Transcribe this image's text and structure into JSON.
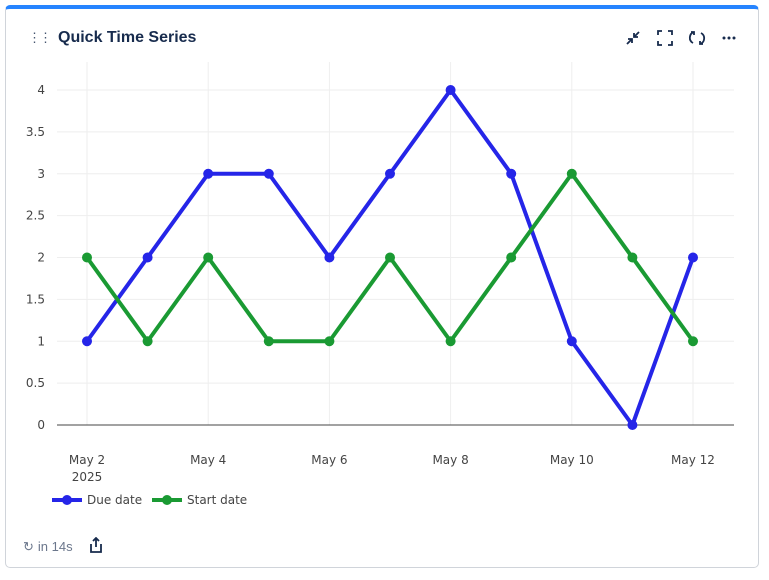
{
  "header": {
    "title": "Quick Time Series",
    "icons": [
      "collapse-icon",
      "fullscreen-icon",
      "refresh-icon",
      "more-icon"
    ]
  },
  "footer": {
    "refresh_text": "in 14s",
    "icons": [
      "refresh-icon",
      "share-icon"
    ]
  },
  "chart_data": {
    "type": "line",
    "x": [
      "2025-05-02",
      "2025-05-03",
      "2025-05-04",
      "2025-05-05",
      "2025-05-06",
      "2025-05-07",
      "2025-05-08",
      "2025-05-09",
      "2025-05-10",
      "2025-05-11",
      "2025-05-12"
    ],
    "xtick_labels": [
      "May 2",
      "May 4",
      "May 6",
      "May 8",
      "May 10",
      "May 12"
    ],
    "xtick_year": "2025",
    "yticks": [
      "0",
      "0.5",
      "1",
      "1.5",
      "2",
      "2.5",
      "3",
      "3.5",
      "4"
    ],
    "ylim": [
      0,
      4
    ],
    "grid": true,
    "legend": "bottom-left",
    "series": [
      {
        "name": "Due date",
        "color": "#2525e8",
        "values": [
          1,
          2,
          3,
          3,
          2,
          3,
          4,
          3,
          1,
          0,
          2
        ]
      },
      {
        "name": "Start date",
        "color": "#1a9a33",
        "values": [
          2,
          1,
          2,
          1,
          1,
          2,
          1,
          2,
          3,
          2,
          1
        ]
      }
    ]
  }
}
